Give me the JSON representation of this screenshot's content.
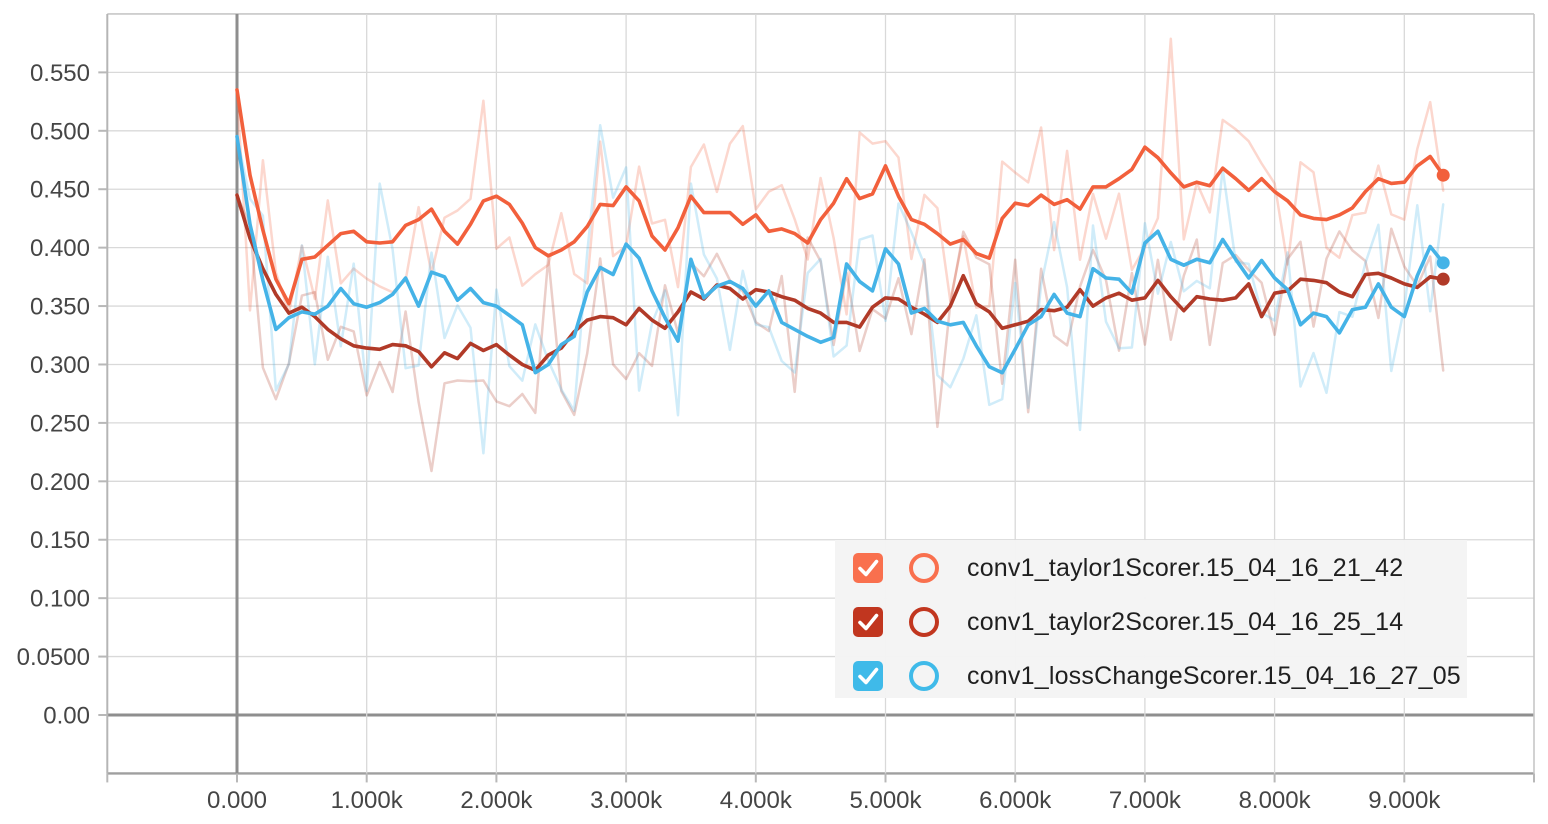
{
  "chart_data": {
    "type": "line",
    "title": "",
    "xlabel": "",
    "ylabel": "",
    "x_unit": "k",
    "xlim": [
      -1,
      10
    ],
    "ylim": [
      -0.05,
      0.6
    ],
    "grid": true,
    "legend_position": "bottom-right",
    "x_axis": {
      "tick_values": [
        0,
        1,
        2,
        3,
        4,
        5,
        6,
        7,
        8,
        9
      ],
      "tick_labels": [
        "0.000",
        "1.000k",
        "2.000k",
        "3.000k",
        "4.000k",
        "5.000k",
        "6.000k",
        "7.000k",
        "8.000k",
        "9.000k"
      ]
    },
    "y_axis": {
      "tick_values": [
        0,
        0.05,
        0.1,
        0.15,
        0.2,
        0.25,
        0.3,
        0.35,
        0.4,
        0.45,
        0.5,
        0.55
      ],
      "tick_labels": [
        "0.00",
        "0.0500",
        "0.100",
        "0.150",
        "0.200",
        "0.250",
        "0.300",
        "0.350",
        "0.400",
        "0.450",
        "0.500",
        "0.550"
      ]
    },
    "x_start": 0,
    "x_step": 0.1,
    "series": [
      {
        "label": "conv1_taylor1Scorer.15_04_16_21_42",
        "color": "#f2603c",
        "box_color": "#f9704e",
        "checked": true,
        "end_dot": true,
        "values": [
          0.535,
          0.462,
          0.415,
          0.373,
          0.352,
          0.39,
          0.392,
          0.402,
          0.412,
          0.414,
          0.405,
          0.404,
          0.405,
          0.419,
          0.424,
          0.433,
          0.414,
          0.403,
          0.42,
          0.44,
          0.444,
          0.437,
          0.421,
          0.4,
          0.393,
          0.398,
          0.405,
          0.418,
          0.437,
          0.436,
          0.452,
          0.44,
          0.41,
          0.398,
          0.417,
          0.444,
          0.43,
          0.43,
          0.43,
          0.42,
          0.428,
          0.414,
          0.416,
          0.412,
          0.404,
          0.424,
          0.438,
          0.459,
          0.442,
          0.446,
          0.47,
          0.444,
          0.424,
          0.42,
          0.412,
          0.403,
          0.407,
          0.395,
          0.391,
          0.425,
          0.438,
          0.436,
          0.445,
          0.437,
          0.441,
          0.433,
          0.452,
          0.452,
          0.459,
          0.467,
          0.486,
          0.477,
          0.464,
          0.452,
          0.456,
          0.453,
          0.468,
          0.459,
          0.449,
          0.459,
          0.448,
          0.44,
          0.428,
          0.425,
          0.424,
          0.428,
          0.434,
          0.448,
          0.459,
          0.455,
          0.456,
          0.47,
          0.478,
          0.462
        ]
      },
      {
        "label": "conv1_taylor2Scorer.15_04_16_25_14",
        "color": "#b13a28",
        "box_color": "#c1361f",
        "checked": true,
        "end_dot": true,
        "values": [
          0.445,
          0.408,
          0.382,
          0.36,
          0.344,
          0.349,
          0.341,
          0.33,
          0.322,
          0.316,
          0.314,
          0.313,
          0.317,
          0.316,
          0.311,
          0.298,
          0.31,
          0.305,
          0.318,
          0.312,
          0.317,
          0.308,
          0.3,
          0.295,
          0.308,
          0.314,
          0.328,
          0.338,
          0.341,
          0.34,
          0.334,
          0.348,
          0.338,
          0.331,
          0.345,
          0.362,
          0.356,
          0.368,
          0.365,
          0.356,
          0.364,
          0.362,
          0.358,
          0.355,
          0.348,
          0.344,
          0.336,
          0.336,
          0.332,
          0.349,
          0.357,
          0.356,
          0.349,
          0.343,
          0.336,
          0.35,
          0.376,
          0.352,
          0.345,
          0.331,
          0.334,
          0.337,
          0.347,
          0.346,
          0.349,
          0.364,
          0.35,
          0.357,
          0.361,
          0.355,
          0.357,
          0.372,
          0.358,
          0.346,
          0.358,
          0.356,
          0.355,
          0.357,
          0.369,
          0.341,
          0.361,
          0.363,
          0.373,
          0.372,
          0.37,
          0.362,
          0.358,
          0.377,
          0.378,
          0.374,
          0.369,
          0.366,
          0.375,
          0.373
        ]
      },
      {
        "label": "conv1_lossChangeScorer.15_04_16_27_05",
        "color": "#45b3e7",
        "box_color": "#3fbae9",
        "checked": true,
        "end_dot": true,
        "values": [
          0.495,
          0.42,
          0.372,
          0.33,
          0.34,
          0.345,
          0.343,
          0.35,
          0.365,
          0.352,
          0.349,
          0.353,
          0.36,
          0.374,
          0.35,
          0.379,
          0.375,
          0.355,
          0.365,
          0.353,
          0.35,
          0.342,
          0.334,
          0.293,
          0.3,
          0.317,
          0.324,
          0.362,
          0.383,
          0.377,
          0.403,
          0.391,
          0.363,
          0.34,
          0.32,
          0.39,
          0.357,
          0.367,
          0.371,
          0.365,
          0.35,
          0.363,
          0.336,
          0.33,
          0.324,
          0.319,
          0.323,
          0.386,
          0.371,
          0.363,
          0.399,
          0.386,
          0.344,
          0.348,
          0.337,
          0.334,
          0.336,
          0.316,
          0.298,
          0.293,
          0.313,
          0.334,
          0.341,
          0.36,
          0.344,
          0.341,
          0.382,
          0.374,
          0.373,
          0.361,
          0.404,
          0.414,
          0.39,
          0.385,
          0.39,
          0.387,
          0.407,
          0.39,
          0.374,
          0.389,
          0.374,
          0.364,
          0.334,
          0.344,
          0.341,
          0.327,
          0.347,
          0.349,
          0.369,
          0.349,
          0.341,
          0.376,
          0.401,
          0.387
        ]
      }
    ],
    "raw_overlay": {
      "opacity": 0.25,
      "amplitudes": [
        0.062,
        0.05,
        0.072
      ],
      "seeds": [
        7,
        13,
        42
      ]
    }
  },
  "colors": {
    "grid_minor": "#d9d9d9",
    "grid_zero": "#8e8e8e",
    "border": "#c7c7c7",
    "border_bottom": "#9f9f9f",
    "border_left": "#b5b5b5",
    "tick": "#b8b8b8",
    "axis_label": "#454545",
    "legend_bg": "#f4f4f4"
  }
}
